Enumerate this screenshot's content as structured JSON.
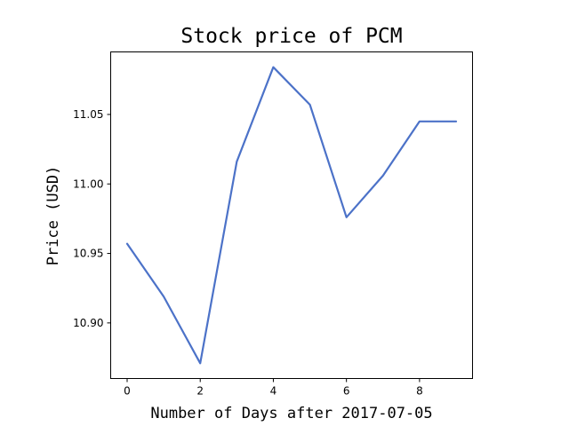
{
  "chart_data": {
    "type": "line",
    "title": "Stock price of PCM",
    "xlabel": "Number of Days after 2017-07-05",
    "ylabel": "Price (USD)",
    "x": [
      0,
      1,
      2,
      3,
      4,
      5,
      6,
      7,
      8,
      9
    ],
    "series": [
      {
        "values": [
          10.957,
          10.919,
          10.871,
          11.016,
          11.084,
          11.057,
          10.976,
          11.006,
          11.045,
          11.045
        ],
        "color": "#4c72c8"
      }
    ],
    "xlim": [
      -0.45,
      9.45
    ],
    "ylim": [
      10.86,
      11.095
    ],
    "xticks": [
      0,
      2,
      4,
      6,
      8
    ],
    "xtick_labels": [
      "0",
      "2",
      "4",
      "6",
      "8"
    ],
    "yticks": [
      10.9,
      10.95,
      11.0,
      11.05
    ],
    "ytick_labels": [
      "10.90",
      "10.95",
      "11.00",
      "11.05"
    ],
    "grid": false,
    "legend": "none"
  }
}
